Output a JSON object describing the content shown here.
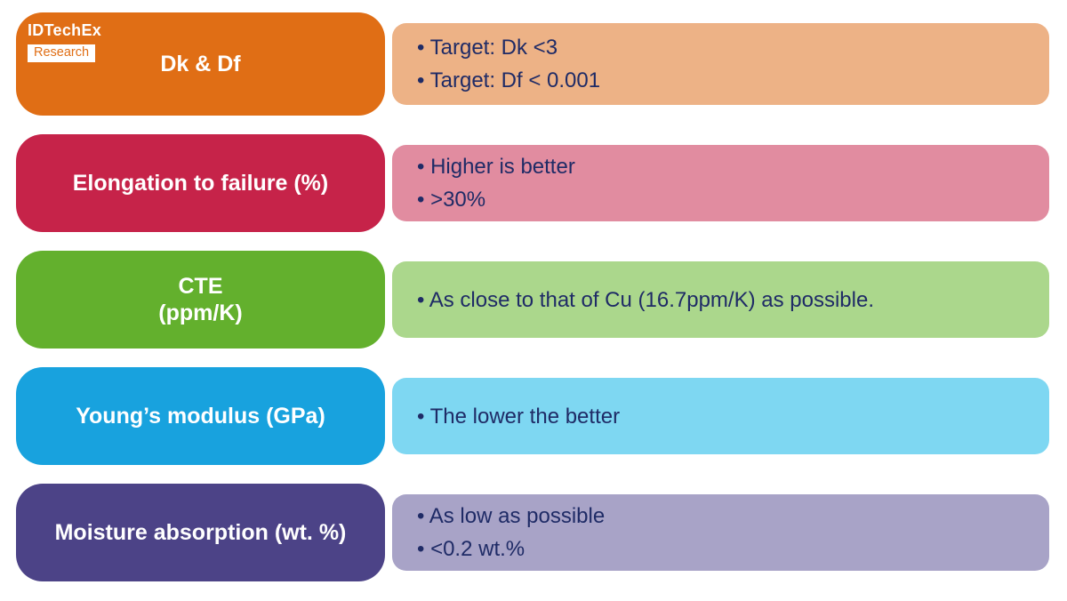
{
  "logo": {
    "brand": "IDTechEx",
    "sub": "Research"
  },
  "theme": {
    "bullet_text_color": "#1F2B66",
    "label_text_color": "#FFFFFF",
    "background": "#FFFFFF"
  },
  "rows": [
    {
      "id": "dk-df",
      "label_lines": [
        "Dk & Df"
      ],
      "bullets": [
        "• Target: Dk <3",
        "• Target: Df < 0.001"
      ],
      "left_color": "#E06E15",
      "right_color": "#EDB286"
    },
    {
      "id": "elongation-to-failure",
      "label_lines": [
        "Elongation to failure (%)"
      ],
      "bullets": [
        "• Higher is better",
        "• >30%"
      ],
      "left_color": "#C62349",
      "right_color": "#E18CA0"
    },
    {
      "id": "cte",
      "label_lines": [
        "CTE",
        "(ppm/K)"
      ],
      "bullets": [
        "• As close to that of Cu (16.7ppm/K) as possible."
      ],
      "left_color": "#63B02D",
      "right_color": "#ABD78C"
    },
    {
      "id": "youngs-modulus",
      "label_lines": [
        "Young’s modulus (GPa)"
      ],
      "bullets": [
        "• The lower the better"
      ],
      "left_color": "#18A2DE",
      "right_color": "#7ED7F2"
    },
    {
      "id": "moisture-absorption",
      "label_lines": [
        "Moisture absorption (wt. %)"
      ],
      "bullets": [
        "• As low as possible",
        "• <0.2 wt.%"
      ],
      "left_color": "#4C4387",
      "right_color": "#A8A3C7"
    }
  ]
}
